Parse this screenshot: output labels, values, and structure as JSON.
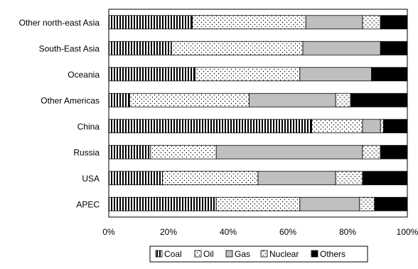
{
  "chart_data": {
    "type": "bar",
    "orientation": "horizontal",
    "stacked": true,
    "percent_stacked": true,
    "categories": [
      "Other north-east Asia",
      "South-East Asia",
      "Oceania",
      "Other Americas",
      "China",
      "Russia",
      "USA",
      "APEC"
    ],
    "series": [
      {
        "name": "Coal",
        "pattern": "vertical-stripes",
        "values": [
          28,
          21,
          29,
          7,
          68,
          14,
          18,
          36
        ]
      },
      {
        "name": "Oil",
        "pattern": "dots",
        "values": [
          38,
          44,
          35,
          40,
          17,
          22,
          32,
          28
        ]
      },
      {
        "name": "Gas",
        "pattern": "solid-gray",
        "values": [
          19,
          26,
          24,
          29,
          6,
          49,
          26,
          20
        ]
      },
      {
        "name": "Nuclear",
        "pattern": "squiggles",
        "values": [
          6,
          0,
          0,
          5,
          1,
          6,
          9,
          5
        ]
      },
      {
        "name": "Others",
        "pattern": "solid-black",
        "values": [
          9,
          9,
          12,
          19,
          8,
          9,
          15,
          11
        ]
      }
    ],
    "xlim": [
      0,
      100
    ],
    "x_ticks": [
      "0%",
      "20%",
      "40%",
      "60%",
      "80%",
      "100%"
    ],
    "title": "",
    "xlabel": "",
    "ylabel": "",
    "grid": false,
    "legend_position": "bottom",
    "colors": {
      "gray": "#bfbfbf",
      "black": "#000000",
      "border": "#000000"
    }
  }
}
